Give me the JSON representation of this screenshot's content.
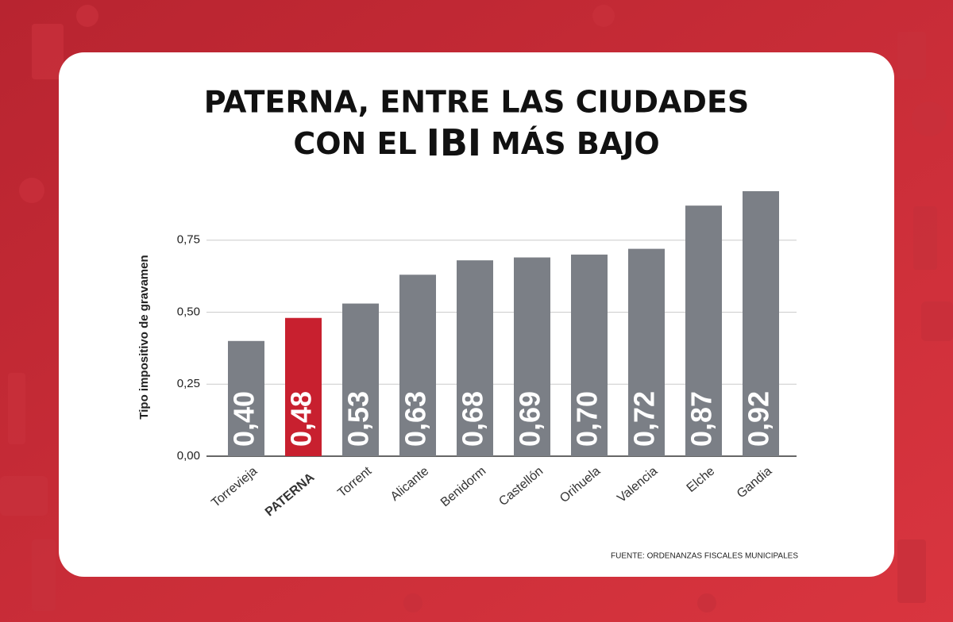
{
  "title": {
    "line1": "PATERNA, ENTRE LAS CIUDADES",
    "line2_start": "CON EL",
    "highlight": "IBI",
    "line2_end": "MÁS BAJO"
  },
  "chart_data": {
    "type": "bar",
    "y_label": "Tipo impositivo de gravamen",
    "source": "FUENTE: ORDENANZAS FISCALES MUNICIPALES",
    "categories": [
      "Torrevieja",
      "PATERNA",
      "Torrent",
      "Alicante",
      "Benidorm",
      "Castellón",
      "Orihuela",
      "Valencia",
      "Elche",
      "Gandia"
    ],
    "values": [
      0.4,
      0.48,
      0.53,
      0.63,
      0.68,
      0.69,
      0.7,
      0.72,
      0.87,
      0.92
    ],
    "value_labels": [
      "0,40",
      "0,48",
      "0,53",
      "0,63",
      "0,68",
      "0,69",
      "0,70",
      "0,72",
      "0,87",
      "0,92"
    ],
    "colors": [
      "#7b7f86",
      "#c8202f",
      "#7b7f86",
      "#7b7f86",
      "#7b7f86",
      "#7b7f86",
      "#7b7f86",
      "#7b7f86",
      "#7b7f86",
      "#7b7f86"
    ],
    "highlight_category": "PATERNA",
    "ylim": [
      0,
      0.92
    ],
    "yticks": [
      {
        "value": 0,
        "label": "0,00"
      },
      {
        "value": 0.25,
        "label": "0,25"
      },
      {
        "value": 0.5,
        "label": "0,50"
      },
      {
        "value": 0.75,
        "label": "0,75"
      }
    ],
    "grid": true
  }
}
